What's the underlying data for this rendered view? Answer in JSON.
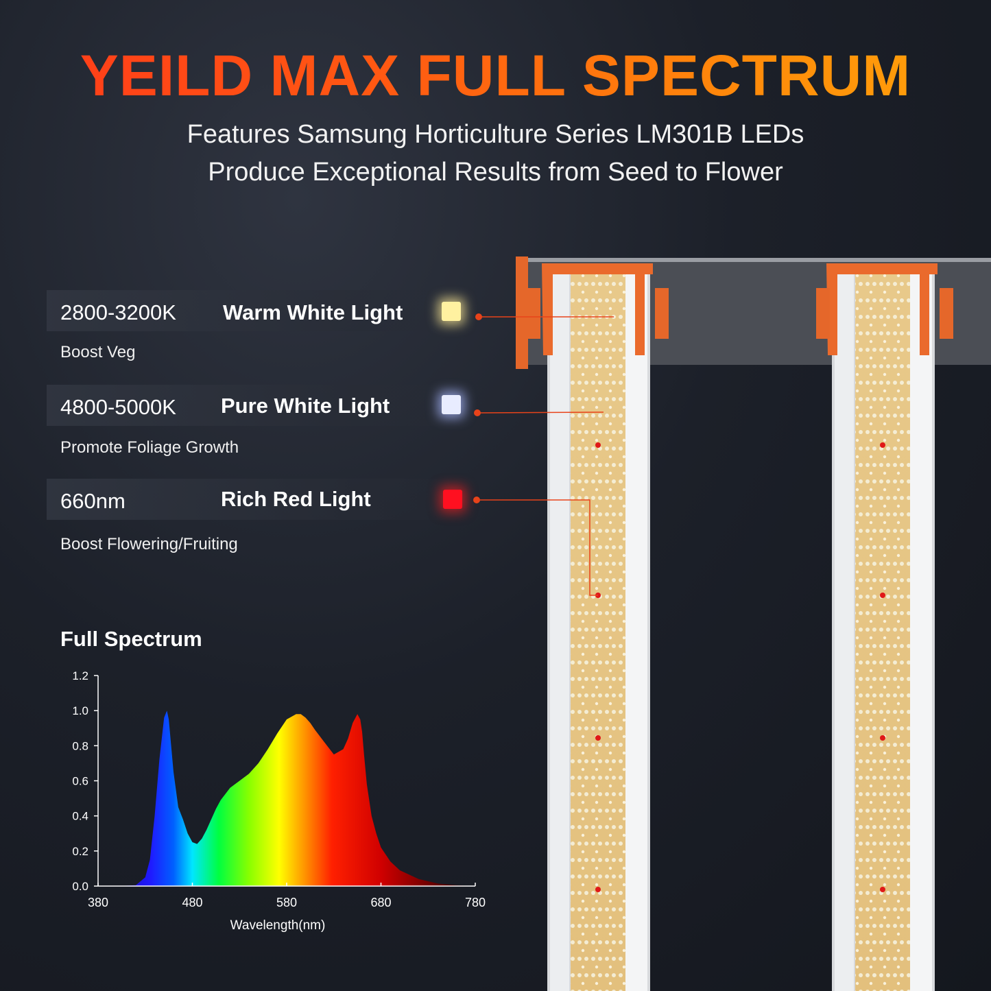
{
  "title": "YEILD MAX FULL SPECTRUM",
  "subtitle_1": "Features Samsung Horticulture Series LM301B LEDs",
  "subtitle_2": "Produce Exceptional Results from Seed to Flower",
  "lights": [
    {
      "temp": "2800-3200K",
      "name": "Warm White Light",
      "benefit": "Boost Veg",
      "color": "#fff1a0"
    },
    {
      "temp": "4800-5000K",
      "name": "Pure White Light",
      "benefit": "Promote Foliage Growth",
      "color": "#e8ecff"
    },
    {
      "temp": "660nm",
      "name": "Rich Red Light",
      "benefit": "Boost Flowering/Fruiting",
      "color": "#ff1020"
    }
  ],
  "accent_color": "#e8431a",
  "chart_data": {
    "type": "area",
    "title": "Full Spectrum",
    "xlabel": "Wavelength(nm)",
    "ylabel": "",
    "xlim": [
      380,
      780
    ],
    "ylim": [
      0,
      1.2
    ],
    "x_ticks": [
      380,
      480,
      580,
      680,
      780
    ],
    "y_ticks": [
      "0.0",
      "0.2",
      "0.4",
      "0.6",
      "0.8",
      "1.0",
      "1.2"
    ],
    "x": [
      380,
      400,
      420,
      430,
      435,
      440,
      445,
      450,
      453,
      455,
      460,
      465,
      470,
      475,
      480,
      485,
      490,
      495,
      500,
      505,
      510,
      520,
      530,
      540,
      550,
      560,
      570,
      580,
      590,
      595,
      600,
      605,
      610,
      620,
      630,
      640,
      645,
      650,
      655,
      658,
      660,
      662,
      665,
      670,
      675,
      680,
      690,
      700,
      720,
      740,
      760,
      780
    ],
    "values": [
      0,
      0,
      0.005,
      0.05,
      0.15,
      0.4,
      0.72,
      0.96,
      1.0,
      0.95,
      0.65,
      0.45,
      0.38,
      0.3,
      0.25,
      0.24,
      0.27,
      0.32,
      0.38,
      0.44,
      0.49,
      0.56,
      0.6,
      0.64,
      0.7,
      0.78,
      0.87,
      0.95,
      0.98,
      0.98,
      0.96,
      0.93,
      0.89,
      0.82,
      0.75,
      0.78,
      0.84,
      0.93,
      0.98,
      0.95,
      0.88,
      0.75,
      0.58,
      0.4,
      0.3,
      0.22,
      0.14,
      0.09,
      0.04,
      0.015,
      0.005,
      0
    ]
  }
}
